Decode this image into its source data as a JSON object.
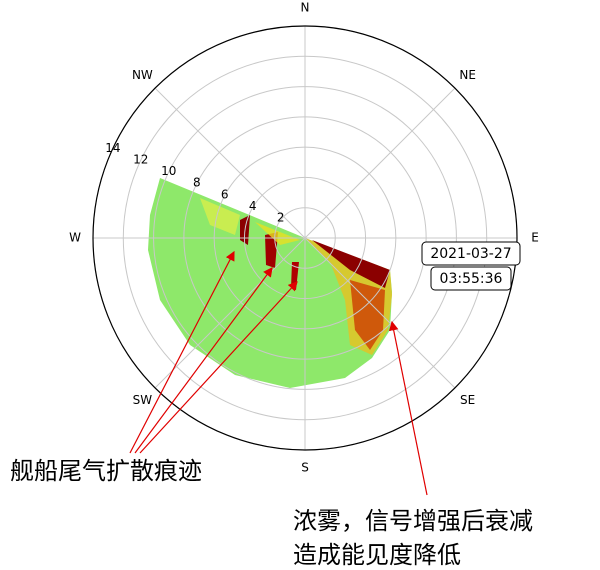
{
  "chart_data": {
    "type": "polar",
    "thetaticks": [
      {
        "value": 0,
        "label": "N"
      },
      {
        "value": 45,
        "label": "NE"
      },
      {
        "value": 90,
        "label": "E"
      },
      {
        "value": 135,
        "label": "SE"
      },
      {
        "value": 180,
        "label": "S"
      },
      {
        "value": 225,
        "label": "SW"
      },
      {
        "value": 270,
        "label": "W"
      },
      {
        "value": 315,
        "label": "NW"
      }
    ],
    "rlim": [
      0,
      14
    ],
    "rticks": [
      2,
      4,
      6,
      8,
      10,
      12,
      14
    ],
    "timestamp": [
      "2021-03-27",
      "03:55:36"
    ],
    "annotations": [
      {
        "text": [
          "舰船尾气扩散痕迹"
        ]
      },
      {
        "text": [
          "浓雾，信号增强后衰减",
          "造成能见度降低"
        ]
      }
    ]
  }
}
